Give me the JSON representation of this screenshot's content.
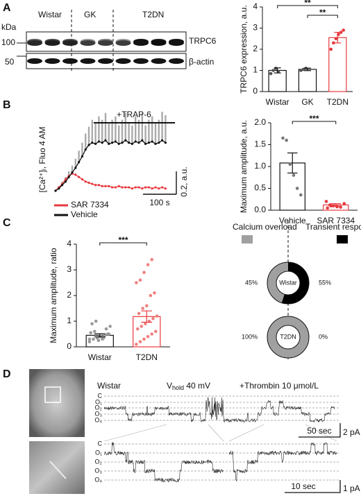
{
  "panel_labels": [
    "A",
    "B",
    "C",
    "D"
  ],
  "blot": {
    "unit": "kDa",
    "groups": [
      "Wistar",
      "GK",
      "T2DN"
    ],
    "markers": [
      100,
      50
    ],
    "bands": [
      "TRPC6",
      "β-actin"
    ]
  },
  "chart_data": [
    {
      "type": "bar",
      "categories": [
        "Wistar",
        "GK",
        "T2DN"
      ],
      "values": [
        1.0,
        1.05,
        2.55
      ],
      "errors": [
        0.12,
        0.06,
        0.25
      ],
      "points": [
        [
          0.85,
          1.0,
          1.1,
          0.95
        ],
        [
          1.0,
          1.05,
          1.1
        ],
        [
          2.0,
          2.3,
          2.5,
          2.7,
          2.8,
          2.9
        ]
      ],
      "colors": [
        "#111111",
        "#111111",
        "#e8383d"
      ],
      "point_colors": [
        "#555555",
        "#555555",
        "#e8383d"
      ],
      "ylim": [
        0,
        4
      ],
      "yticks": [
        0,
        1,
        2,
        3,
        4
      ],
      "ylabel": "TRPC6  expression, a.u.",
      "significance": [
        {
          "label": "**",
          "from": "Wistar",
          "to": "T2DN"
        },
        {
          "label": "**",
          "from": "GK",
          "to": "T2DN"
        }
      ]
    },
    {
      "type": "line",
      "annotation": "+TRAP-6",
      "ylabel": "[Ca²⁺]ᵢ, Fluo 4 AM",
      "x": [
        0,
        10,
        20,
        30,
        40,
        50,
        60,
        70,
        80,
        90,
        100,
        110,
        120,
        130,
        140,
        150,
        160,
        170,
        180,
        190,
        200,
        210,
        220,
        230,
        240,
        250,
        260,
        270,
        280,
        290,
        300,
        310,
        320,
        330
      ],
      "series": [
        {
          "name": "SAR 7334",
          "color": "#e8383d",
          "values": [
            0,
            0.03,
            0.06,
            0.1,
            0.13,
            0.15,
            0.14,
            0.12,
            0.1,
            0.08,
            0.07,
            0.06,
            0.05,
            0.05,
            0.04,
            0.04,
            0.04,
            0.03,
            0.03,
            0.04,
            0.03,
            0.03,
            0.03,
            0.02,
            0.03,
            0.03,
            0.02,
            0.03,
            0.03,
            0.02,
            0.03,
            0.02,
            0.03,
            0.02
          ]
        },
        {
          "name": "Vehicle",
          "color": "#111111",
          "error_color": "#aaaaaa",
          "values": [
            0,
            0.02,
            0.05,
            0.08,
            0.12,
            0.16,
            0.2,
            0.25,
            0.3,
            0.36,
            0.4,
            0.42,
            0.41,
            0.43,
            0.42,
            0.44,
            0.41,
            0.42,
            0.43,
            0.41,
            0.42,
            0.44,
            0.42,
            0.41,
            0.43,
            0.42,
            0.44,
            0.41,
            0.42,
            0.43,
            0.41,
            0.42,
            0.44,
            0.42
          ],
          "errors": [
            0.01,
            0.02,
            0.03,
            0.04,
            0.05,
            0.06,
            0.08,
            0.1,
            0.12,
            0.14,
            0.16,
            0.2,
            0.18,
            0.22,
            0.2,
            0.24,
            0.18,
            0.2,
            0.22,
            0.16,
            0.2,
            0.24,
            0.18,
            0.16,
            0.22,
            0.2,
            0.24,
            0.16,
            0.2,
            0.22,
            0.18,
            0.2,
            0.25,
            0.24
          ]
        }
      ],
      "scalebar": {
        "x": 100,
        "x_label": "100 s",
        "y": 0.2,
        "y_label": "0.2, a.u."
      }
    },
    {
      "type": "bar",
      "categories": [
        "Vehicle",
        "SAR 7334"
      ],
      "values": [
        1.08,
        0.12
      ],
      "errors": [
        0.23,
        0.03
      ],
      "points": [
        [
          1.65,
          1.6,
          1.05,
          0.8,
          0.5,
          0.35
        ],
        [
          0.2,
          0.12,
          0.1,
          0.08,
          0.07,
          0.15,
          0.05,
          0.1
        ]
      ],
      "colors": [
        "#111111",
        "#e8383d"
      ],
      "point_colors": [
        "#777777",
        "#e8383d"
      ],
      "ylim": [
        0,
        2
      ],
      "yticks": [
        {
          "value": 0,
          "label": "0.0"
        },
        0.5,
        {
          "value": 1,
          "label": "1.0"
        },
        1.5,
        {
          "value": 2,
          "label": "2.0"
        }
      ],
      "ylabel": "Maximum amplitude, a.u.",
      "significance": [
        {
          "label": "***",
          "from": "Vehicle",
          "to": "SAR 7334"
        }
      ]
    },
    {
      "type": "bar",
      "categories": [
        "Wistar",
        "T2DN"
      ],
      "values": [
        0.45,
        1.18
      ],
      "errors": [
        0.06,
        0.22
      ],
      "points": [
        [
          0.2,
          0.3,
          0.35,
          0.4,
          0.45,
          0.5,
          0.55,
          0.6,
          0.25,
          0.3,
          0.7,
          0.8,
          0.9,
          1.0,
          0.4,
          0.35,
          0.5,
          0.3
        ],
        [
          0.1,
          0.2,
          0.3,
          0.4,
          0.5,
          0.6,
          0.7,
          0.8,
          0.9,
          1.0,
          1.1,
          1.2,
          1.3,
          1.5,
          1.6,
          2.0,
          2.1,
          2.5,
          2.6,
          2.9,
          3.2,
          3.4
        ]
      ],
      "colors": [
        "#111111",
        "#e8383d"
      ],
      "point_colors": [
        "#999999",
        "#f08080"
      ],
      "ylim": [
        0,
        4
      ],
      "yticks": [
        0,
        1,
        2,
        3,
        4
      ],
      "ylabel": "Maximum amplitude, ratio",
      "significance": [
        {
          "label": "***",
          "from": "Wistar",
          "to": "T2DN"
        }
      ]
    },
    {
      "type": "donut",
      "categories": [
        "Calcium overload",
        "Transient response"
      ],
      "colors": [
        "#a0a0a0",
        "#000000"
      ],
      "groups": [
        {
          "name": "Wistar",
          "values": [
            45,
            55
          ],
          "value_labels": [
            "45%",
            "55%"
          ]
        },
        {
          "name": "T2DN",
          "values": [
            100,
            0
          ],
          "value_labels": [
            "100%",
            "0%"
          ]
        }
      ]
    }
  ],
  "patch_clamp": {
    "group": "Wistar",
    "holding_potential": {
      "symbol": "V",
      "subscript": "hold",
      "value": " 40 mV"
    },
    "treatment": "+Thrombin 10 μmol/L",
    "levels": [
      "C",
      "O₁",
      "O₂",
      "O₃",
      "O₄"
    ],
    "scalebars": [
      {
        "time": "50 sec",
        "current": "2 pA"
      },
      {
        "time": "10 sec",
        "current": "1 pA"
      }
    ]
  }
}
